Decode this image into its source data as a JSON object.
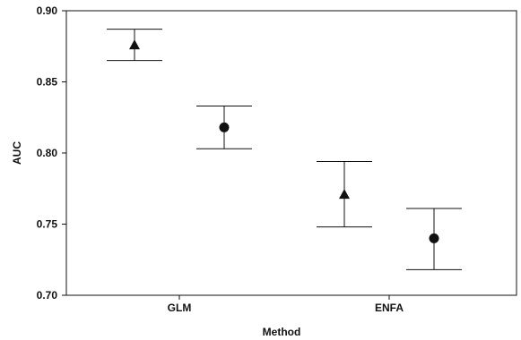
{
  "chart_data": {
    "type": "scatter",
    "title": "",
    "xlabel": "Method",
    "ylabel": "AUC",
    "categories": [
      "GLM",
      "ENFA"
    ],
    "ylim": [
      0.7,
      0.9
    ],
    "yticks": [
      "0.70",
      "0.75",
      "0.80",
      "0.85",
      "0.90"
    ],
    "grid": false,
    "series": [
      {
        "marker": "triangle",
        "values": [
          0.876,
          0.771
        ],
        "error_low": [
          0.865,
          0.748
        ],
        "error_high": [
          0.887,
          0.794
        ]
      },
      {
        "marker": "circle",
        "values": [
          0.818,
          0.74
        ],
        "error_low": [
          0.803,
          0.718
        ],
        "error_high": [
          0.833,
          0.761
        ]
      }
    ]
  }
}
